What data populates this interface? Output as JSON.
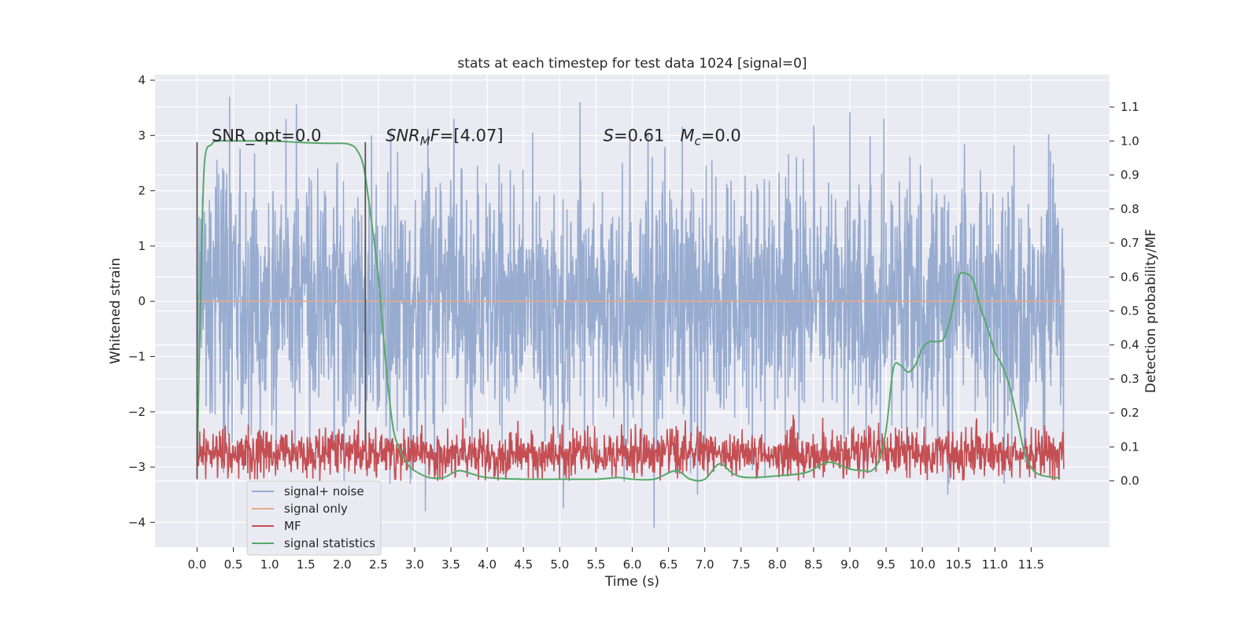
{
  "chart_data": {
    "type": "line",
    "title": "stats at each timestep for test data 1024 [signal=0]",
    "xlabel": "Time (s)",
    "ylabel": "Whitened strain",
    "y2label": "Detection probability/MF",
    "xlim": [
      -0.58,
      12.58
    ],
    "ylim": [
      -4.45,
      4.1
    ],
    "y2lim": [
      -0.195,
      1.195
    ],
    "x_ticks": [
      0.0,
      0.5,
      1.0,
      1.5,
      2.0,
      2.5,
      3.0,
      3.5,
      4.0,
      4.5,
      5.0,
      5.5,
      6.0,
      6.5,
      7.0,
      7.5,
      8.0,
      8.5,
      9.0,
      9.5,
      10.0,
      10.5,
      11.0,
      11.5
    ],
    "x_tick_labels": [
      "0.0",
      "0.5",
      "1.0",
      "1.5",
      "2.0",
      "2.5",
      "3.0",
      "3.5",
      "4.0",
      "4.5",
      "5.0",
      "5.5",
      "6.0",
      "6.5",
      "7.0",
      "7.5",
      "8.0",
      "8.5",
      "9.0",
      "9.5",
      "10.0",
      "10.5",
      "11.0",
      "11.5"
    ],
    "y_ticks": [
      -4,
      -3,
      -2,
      -1,
      0,
      1,
      2,
      3,
      4
    ],
    "y_tick_labels": [
      "−4",
      "−3",
      "−2",
      "−1",
      "0",
      "1",
      "2",
      "3",
      "4"
    ],
    "y2_ticks": [
      0.0,
      0.1,
      0.2,
      0.3,
      0.4,
      0.5,
      0.6,
      0.7,
      0.8,
      0.9,
      1.0,
      1.1
    ],
    "y2_tick_labels": [
      "0.0",
      "0.1",
      "0.2",
      "0.3",
      "0.4",
      "0.5",
      "0.6",
      "0.7",
      "0.8",
      "0.9",
      "1.0",
      "1.1"
    ],
    "grid": true,
    "legend_position": "lower-left",
    "annotations": [
      {
        "text": "SNR_opt=0.0",
        "x": 0.2,
        "y": 2.9
      },
      {
        "text": "SNR_MF=[4.07]",
        "x": 2.6,
        "y": 2.9
      },
      {
        "text": "S=0.61   M_c=0.0",
        "x": 5.6,
        "y": 2.9
      }
    ],
    "vertical_lines": [
      {
        "x": 0.0,
        "y_range": [
          -3.22,
          2.88
        ]
      },
      {
        "x": 2.32,
        "y_range": [
          -2.55,
          2.88
        ]
      }
    ],
    "series": [
      {
        "name": "signal+ noise",
        "axis": "left",
        "color": "#98acd0",
        "x_range": [
          0.0,
          11.95
        ],
        "envelope_description": "dense whitened noise, typical amplitude within about ±2.5, peaks reaching about ±3.7",
        "notable_peaks": [
          {
            "x": 0.45,
            "y": 3.7
          },
          {
            "x": 1.37,
            "y": 3.57
          },
          {
            "x": 5.28,
            "y": 3.6
          },
          {
            "x": 9.0,
            "y": 3.42
          },
          {
            "x": 3.15,
            "y": -3.8
          },
          {
            "x": 5.05,
            "y": -3.75
          },
          {
            "x": 6.3,
            "y": -4.1
          },
          {
            "x": 10.35,
            "y": -3.5
          },
          {
            "x": 6.9,
            "y": -3.5
          }
        ]
      },
      {
        "name": "signal only",
        "axis": "left",
        "color": "#e8a88a",
        "x": [
          0.0,
          11.95
        ],
        "y": [
          0.0,
          0.0
        ]
      },
      {
        "name": "MF",
        "axis": "right",
        "color": "#c44e52",
        "x_range": [
          0.0,
          11.95
        ],
        "envelope_description": "matched-filter output between about 0.0 and 0.2 on right axis, peaks near 0.23",
        "value_range": [
          0.0,
          0.23
        ]
      },
      {
        "name": "signal statistics",
        "axis": "right",
        "color": "#55a868",
        "x": [
          0.0,
          0.05,
          0.1,
          0.2,
          0.3,
          0.5,
          1.0,
          1.5,
          1.8,
          2.0,
          2.1,
          2.2,
          2.3,
          2.4,
          2.5,
          2.6,
          2.7,
          2.8,
          2.9,
          3.0,
          3.2,
          3.4,
          3.6,
          3.8,
          4.0,
          4.5,
          5.0,
          5.5,
          5.8,
          6.0,
          6.3,
          6.6,
          6.8,
          7.0,
          7.2,
          7.4,
          7.6,
          8.0,
          8.4,
          8.7,
          9.0,
          9.2,
          9.3,
          9.4,
          9.5,
          9.6,
          9.7,
          9.8,
          9.9,
          10.0,
          10.1,
          10.2,
          10.3,
          10.4,
          10.5,
          10.6,
          10.7,
          10.8,
          10.9,
          11.0,
          11.1,
          11.2,
          11.3,
          11.4,
          11.5,
          11.6,
          11.8,
          11.9
        ],
        "y": [
          0.05,
          0.55,
          0.93,
          0.99,
          1.0,
          1.0,
          1.0,
          0.995,
          0.993,
          0.993,
          0.99,
          0.975,
          0.92,
          0.77,
          0.6,
          0.35,
          0.16,
          0.09,
          0.05,
          0.03,
          0.01,
          0.01,
          0.03,
          0.02,
          0.01,
          0.005,
          0.005,
          0.005,
          0.01,
          0.005,
          0.005,
          0.03,
          0.005,
          0.005,
          0.05,
          0.02,
          0.01,
          0.015,
          0.025,
          0.055,
          0.035,
          0.03,
          0.03,
          0.06,
          0.15,
          0.33,
          0.34,
          0.32,
          0.34,
          0.39,
          0.41,
          0.41,
          0.42,
          0.49,
          0.6,
          0.61,
          0.59,
          0.51,
          0.45,
          0.38,
          0.34,
          0.28,
          0.19,
          0.09,
          0.04,
          0.02,
          0.01,
          0.01
        ]
      }
    ]
  }
}
